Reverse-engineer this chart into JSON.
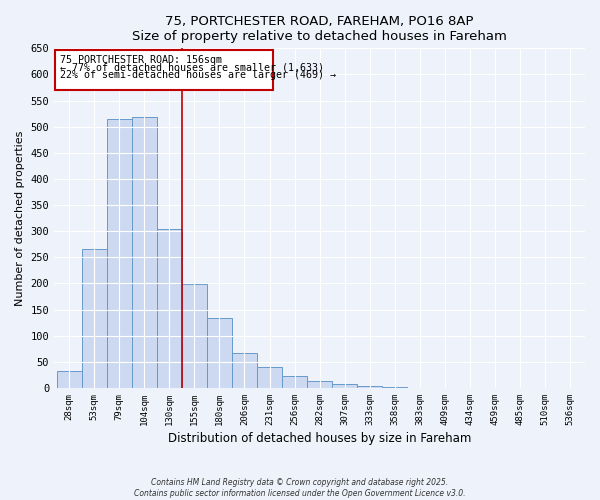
{
  "title": "75, PORTCHESTER ROAD, FAREHAM, PO16 8AP",
  "subtitle": "Size of property relative to detached houses in Fareham",
  "xlabel": "Distribution of detached houses by size in Fareham",
  "ylabel": "Number of detached properties",
  "bar_labels": [
    "28sqm",
    "53sqm",
    "79sqm",
    "104sqm",
    "130sqm",
    "155sqm",
    "180sqm",
    "206sqm",
    "231sqm",
    "256sqm",
    "282sqm",
    "307sqm",
    "333sqm",
    "358sqm",
    "383sqm",
    "409sqm",
    "434sqm",
    "459sqm",
    "485sqm",
    "510sqm",
    "536sqm"
  ],
  "bar_values": [
    32,
    265,
    515,
    518,
    305,
    198,
    133,
    67,
    40,
    22,
    14,
    8,
    3,
    1,
    0,
    0,
    0,
    0,
    0,
    0,
    0
  ],
  "bar_color": "#ccd9f0",
  "bar_edge_color": "#6699cc",
  "property_line_color": "#c00000",
  "annotation_title": "75 PORTCHESTER ROAD: 156sqm",
  "annotation_line1": "← 77% of detached houses are smaller (1,633)",
  "annotation_line2": "22% of semi-detached houses are larger (469) →",
  "annotation_box_color": "#c00000",
  "ylim": [
    0,
    650
  ],
  "yticks": [
    0,
    50,
    100,
    150,
    200,
    250,
    300,
    350,
    400,
    450,
    500,
    550,
    600,
    650
  ],
  "footnote1": "Contains HM Land Registry data © Crown copyright and database right 2025.",
  "footnote2": "Contains public sector information licensed under the Open Government Licence v3.0.",
  "background_color": "#eef2fa"
}
